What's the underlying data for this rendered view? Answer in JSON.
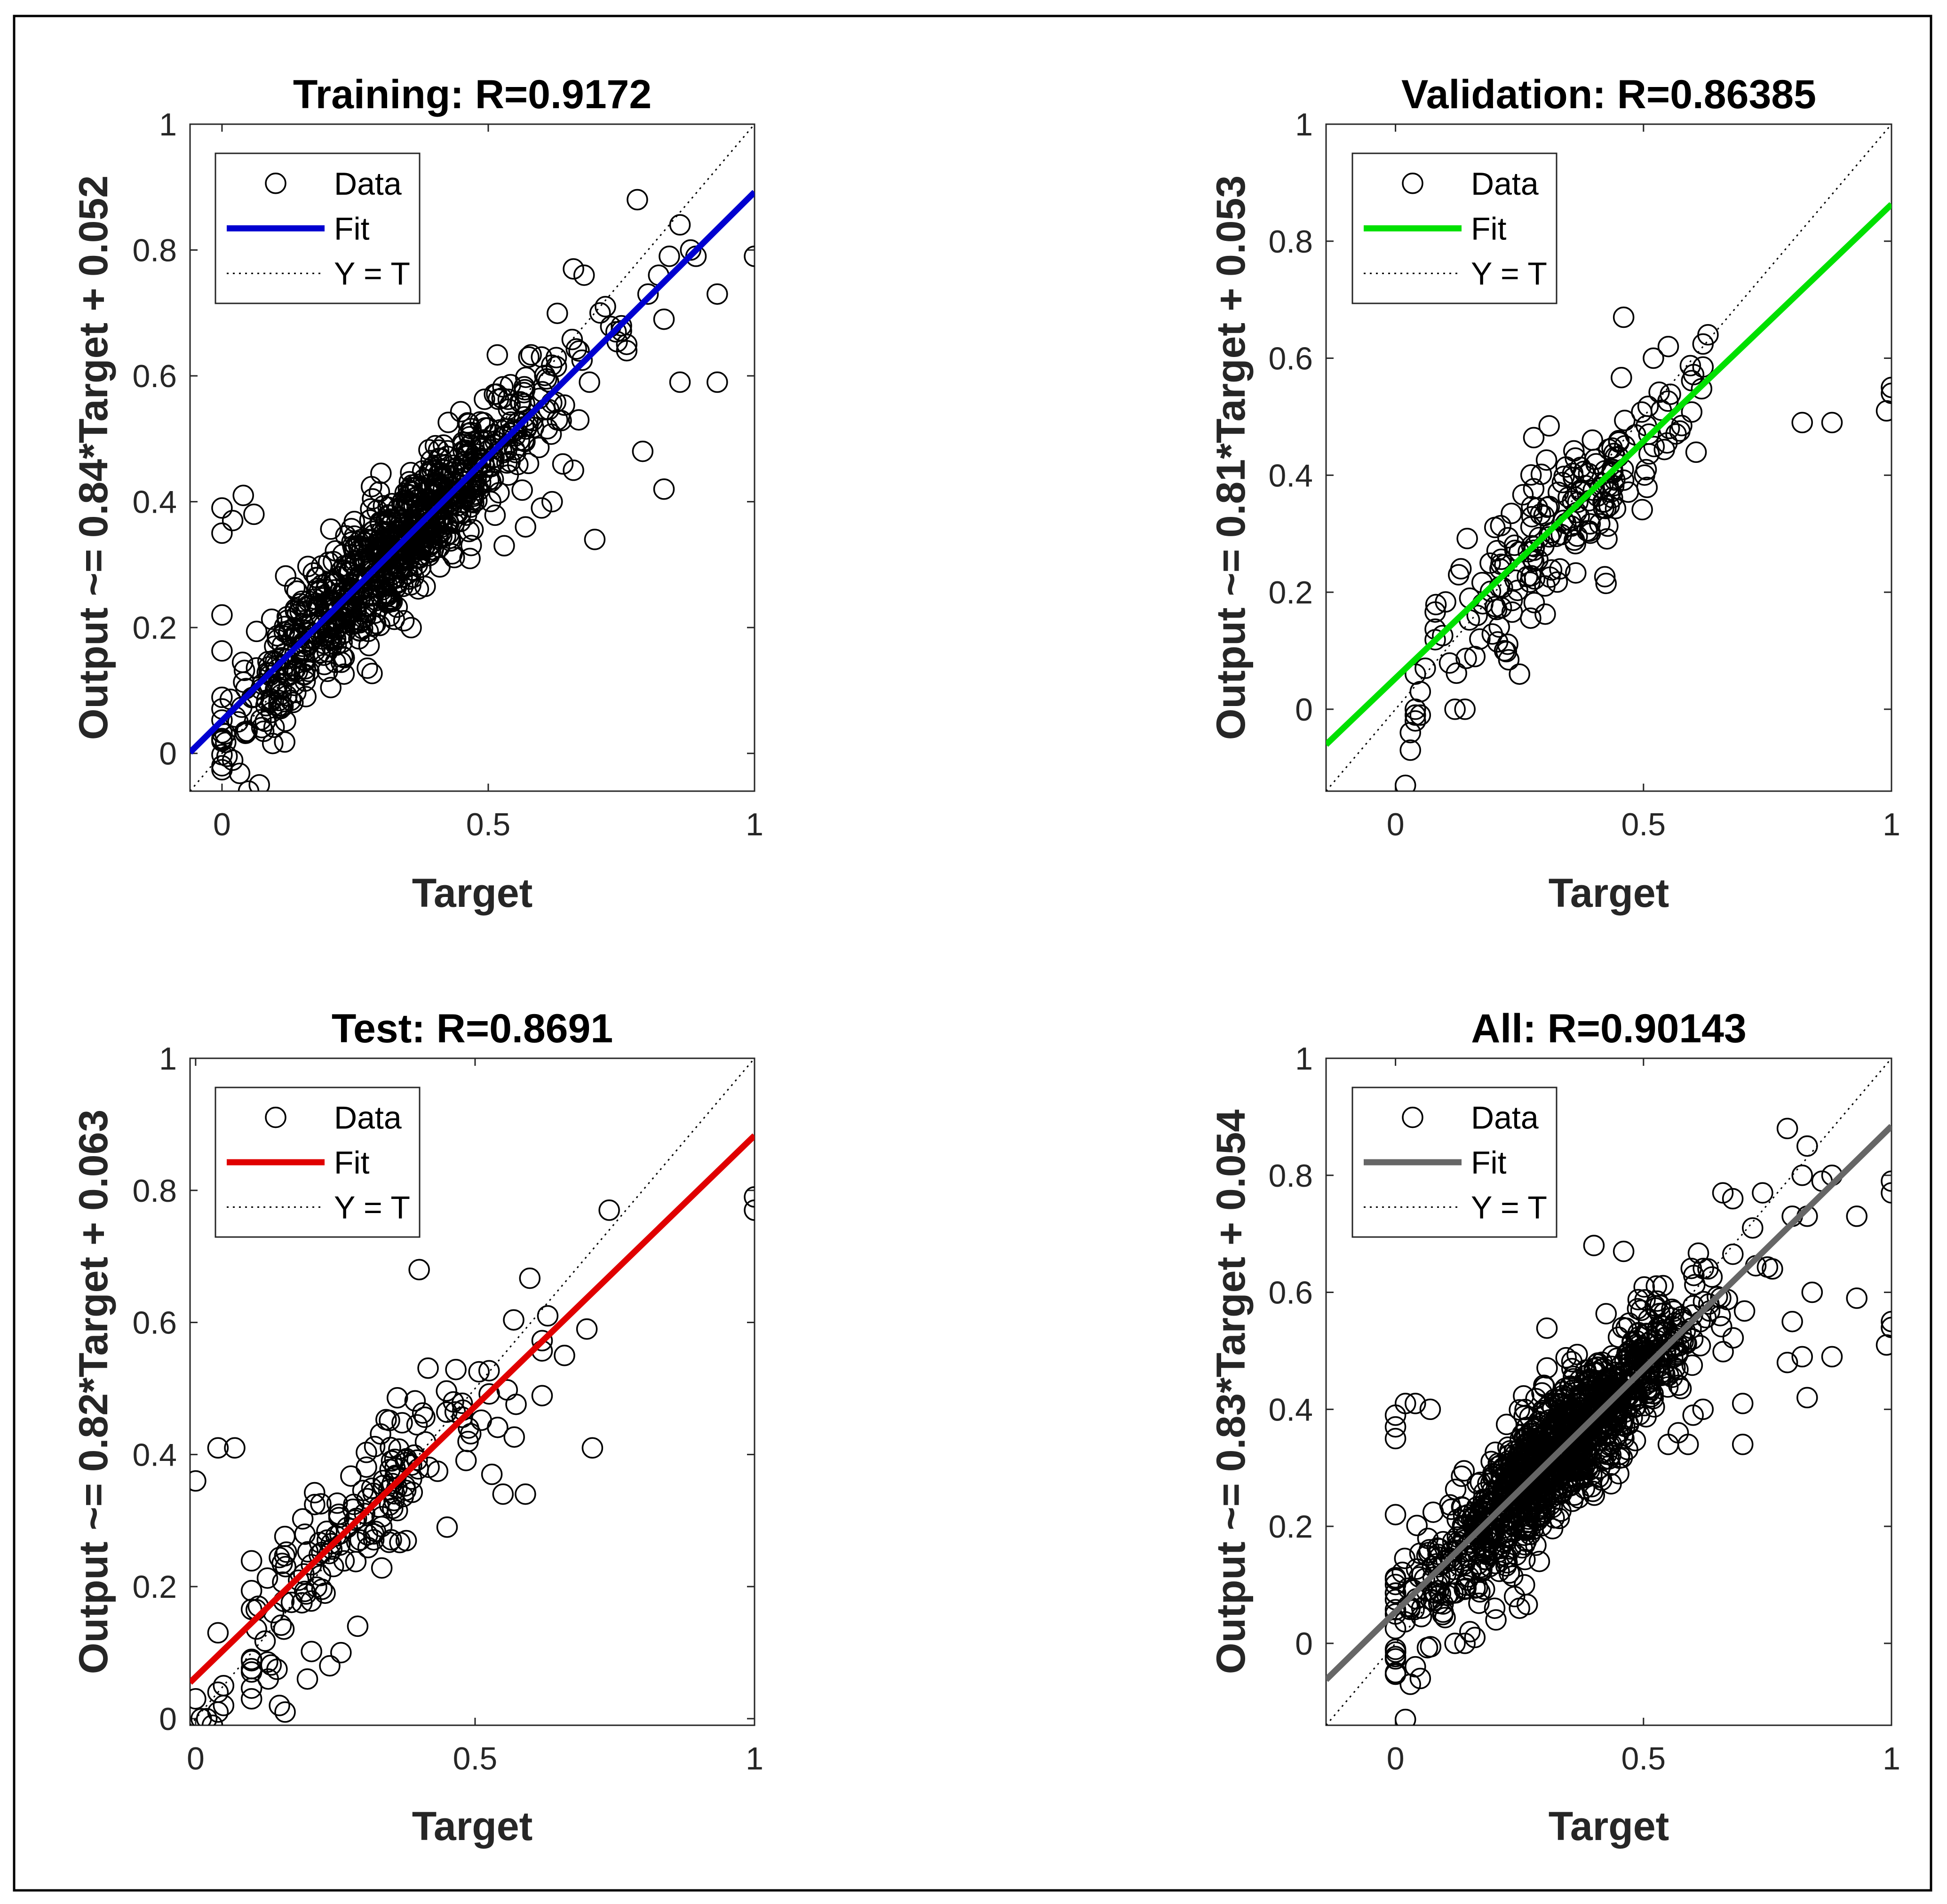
{
  "figure": {
    "chart_data": [
      {
        "id": "training",
        "type": "scatter",
        "title": "Training: R=0.9172",
        "xlabel": "Target",
        "ylabel": "Output ~= 0.84*Target + 0.052",
        "xlim": [
          -0.06,
          1.0
        ],
        "ylim": [
          -0.06,
          1.0
        ],
        "xticks": [
          0,
          0.5,
          1
        ],
        "xtick_labels": [
          "0",
          "0.5",
          "1"
        ],
        "yticks": [
          0,
          0.2,
          0.4,
          0.6,
          0.8,
          1
        ],
        "ytick_labels": [
          "0",
          "0.2",
          "0.4",
          "0.6",
          "0.8",
          "1"
        ],
        "grid": false,
        "legend_position": "top-left",
        "legend": {
          "data": "Data",
          "fit": "Fit",
          "identity": "Y = T"
        },
        "fit": {
          "slope": 0.84,
          "intercept": 0.052,
          "color": "#0000d0"
        },
        "identity_line": true,
        "scatter": {
          "n": 860,
          "seed": 101,
          "xmean": 0.33,
          "xsd": 0.14,
          "xmin": 0.0,
          "xmax": 0.75,
          "noise": 0.05,
          "slope": 0.84,
          "intercept": 0.052,
          "outliers": [
            [
              0.0,
              0.39
            ],
            [
              0.02,
              0.37
            ],
            [
              0.04,
              0.41
            ],
            [
              0.06,
              0.38
            ],
            [
              0.0,
              0.35
            ],
            [
              0.0,
              0.22
            ],
            [
              0.03,
              0.05
            ],
            [
              0.05,
              -0.06
            ],
            [
              0.07,
              -0.05
            ],
            [
              0.78,
              0.88
            ],
            [
              0.86,
              0.84
            ],
            [
              0.88,
              0.8
            ],
            [
              0.89,
              0.79
            ],
            [
              1.0,
              0.79
            ],
            [
              0.84,
              0.79
            ],
            [
              0.82,
              0.76
            ],
            [
              0.8,
              0.73
            ],
            [
              0.93,
              0.73
            ],
            [
              0.83,
              0.69
            ],
            [
              0.76,
              0.64
            ],
            [
              0.86,
              0.59
            ],
            [
              0.93,
              0.59
            ],
            [
              0.69,
              0.59
            ],
            [
              0.67,
              0.53
            ],
            [
              0.79,
              0.48
            ],
            [
              0.83,
              0.42
            ],
            [
              0.7,
              0.34
            ],
            [
              0.66,
              0.77
            ],
            [
              0.68,
              0.76
            ],
            [
              0.72,
              0.71
            ],
            [
              0.71,
              0.7
            ],
            [
              0.74,
              0.67
            ],
            [
              0.76,
              0.65
            ],
            [
              0.6,
              0.63
            ],
            [
              0.63,
              0.53
            ],
            [
              0.64,
              0.46
            ],
            [
              0.66,
              0.45
            ],
            [
              0.62,
              0.4
            ],
            [
              0.6,
              0.39
            ],
            [
              0.57,
              0.36
            ],
            [
              0.53,
              0.33
            ]
          ]
        }
      },
      {
        "id": "validation",
        "type": "scatter",
        "title": "Validation: R=0.86385",
        "xlabel": "Target",
        "ylabel": "Output ~= 0.81*Target + 0.053",
        "xlim": [
          -0.14,
          1.0
        ],
        "ylim": [
          -0.14,
          1.0
        ],
        "xticks": [
          0,
          0.5,
          1
        ],
        "xtick_labels": [
          "0",
          "0.5",
          "1"
        ],
        "yticks": [
          0,
          0.2,
          0.4,
          0.6,
          0.8,
          1
        ],
        "ytick_labels": [
          "0",
          "0.2",
          "0.4",
          "0.6",
          "0.8",
          "1"
        ],
        "grid": false,
        "legend_position": "top-left",
        "legend": {
          "data": "Data",
          "fit": "Fit",
          "identity": "Y = T"
        },
        "fit": {
          "slope": 0.81,
          "intercept": 0.053,
          "color": "#00e000"
        },
        "identity_line": true,
        "scatter": {
          "n": 190,
          "seed": 202,
          "xmean": 0.33,
          "xsd": 0.14,
          "xmin": 0.08,
          "xmax": 0.62,
          "noise": 0.06,
          "slope": 0.81,
          "intercept": 0.053,
          "outliers": [
            [
              0.02,
              -0.13
            ],
            [
              0.03,
              -0.07
            ],
            [
              0.03,
              -0.04
            ],
            [
              0.04,
              -0.02
            ],
            [
              0.04,
              -0.01
            ],
            [
              0.04,
              0.0
            ],
            [
              0.05,
              0.03
            ],
            [
              0.05,
              -0.01
            ],
            [
              0.04,
              0.06
            ],
            [
              0.06,
              0.07
            ],
            [
              0.82,
              0.49
            ],
            [
              0.88,
              0.49
            ],
            [
              0.99,
              0.51
            ],
            [
              1.0,
              0.54
            ],
            [
              1.0,
              0.55
            ],
            [
              0.46,
              0.67
            ],
            [
              0.63,
              0.64
            ],
            [
              0.55,
              0.62
            ],
            [
              0.52,
              0.6
            ],
            [
              0.12,
              0.0
            ],
            [
              0.14,
              0.0
            ],
            [
              0.25,
              0.06
            ],
            [
              0.22,
              0.1
            ],
            [
              0.17,
              0.12
            ],
            [
              0.16,
              0.09
            ]
          ]
        }
      },
      {
        "id": "test",
        "type": "scatter",
        "title": "Test: R=0.8691",
        "xlabel": "Target",
        "ylabel": "Output ~= 0.82*Target + 0.063",
        "xlim": [
          -0.01,
          1.0
        ],
        "ylim": [
          -0.01,
          1.0
        ],
        "xticks": [
          0,
          0.5,
          1
        ],
        "xtick_labels": [
          "0",
          "0.5",
          "1"
        ],
        "yticks": [
          0,
          0.2,
          0.4,
          0.6,
          0.8,
          1
        ],
        "ytick_labels": [
          "0",
          "0.2",
          "0.4",
          "0.6",
          "0.8",
          "1"
        ],
        "grid": false,
        "legend_position": "top-left",
        "legend": {
          "data": "Data",
          "fit": "Fit",
          "identity": "Y = T"
        },
        "fit": {
          "slope": 0.82,
          "intercept": 0.063,
          "color": "#e00000"
        },
        "identity_line": true,
        "scatter": {
          "n": 160,
          "seed": 303,
          "xmean": 0.33,
          "xsd": 0.13,
          "xmin": 0.1,
          "xmax": 0.62,
          "noise": 0.055,
          "slope": 0.82,
          "intercept": 0.063,
          "outliers": [
            [
              0.0,
              0.36
            ],
            [
              0.04,
              0.41
            ],
            [
              0.07,
              0.41
            ],
            [
              0.0,
              0.03
            ],
            [
              0.01,
              0.0
            ],
            [
              0.02,
              0.0
            ],
            [
              0.03,
              -0.01
            ],
            [
              0.04,
              0.01
            ],
            [
              0.05,
              0.02
            ],
            [
              0.04,
              0.04
            ],
            [
              0.05,
              0.05
            ],
            [
              0.04,
              0.13
            ],
            [
              1.0,
              0.79
            ],
            [
              1.0,
              0.77
            ],
            [
              0.74,
              0.77
            ],
            [
              0.4,
              0.68
            ],
            [
              0.63,
              0.61
            ],
            [
              0.7,
              0.59
            ],
            [
              0.66,
              0.55
            ],
            [
              0.71,
              0.41
            ],
            [
              0.45,
              0.29
            ],
            [
              0.55,
              0.34
            ],
            [
              0.59,
              0.34
            ],
            [
              0.53,
              0.37
            ],
            [
              0.29,
              0.14
            ],
            [
              0.26,
              0.1
            ],
            [
              0.24,
              0.08
            ],
            [
              0.2,
              0.06
            ],
            [
              0.15,
              0.02
            ],
            [
              0.16,
              0.01
            ],
            [
              0.1,
              0.03
            ],
            [
              0.13,
              0.06
            ]
          ]
        }
      },
      {
        "id": "all",
        "type": "scatter",
        "title": "All: R=0.90143",
        "xlabel": "Target",
        "ylabel": "Output ~= 0.83*Target + 0.054",
        "xlim": [
          -0.14,
          1.0
        ],
        "ylim": [
          -0.14,
          1.0
        ],
        "xticks": [
          0,
          0.5,
          1
        ],
        "xtick_labels": [
          "0",
          "0.5",
          "1"
        ],
        "yticks": [
          0,
          0.2,
          0.4,
          0.6,
          0.8,
          1
        ],
        "ytick_labels": [
          "0",
          "0.2",
          "0.4",
          "0.6",
          "0.8",
          "1"
        ],
        "grid": false,
        "legend_position": "top-left",
        "legend": {
          "data": "Data",
          "fit": "Fit",
          "identity": "Y = T"
        },
        "fit": {
          "slope": 0.83,
          "intercept": 0.054,
          "color": "#666666"
        },
        "identity_line": true,
        "scatter": {
          "n": 1180,
          "seed": 404,
          "xmean": 0.33,
          "xsd": 0.14,
          "xmin": 0.0,
          "xmax": 0.75,
          "noise": 0.055,
          "slope": 0.83,
          "intercept": 0.054,
          "outliers": [
            [
              0.0,
              0.39
            ],
            [
              0.02,
              0.41
            ],
            [
              0.04,
              0.41
            ],
            [
              0.07,
              0.4
            ],
            [
              0.0,
              0.35
            ],
            [
              0.0,
              0.37
            ],
            [
              0.0,
              0.22
            ],
            [
              0.02,
              -0.13
            ],
            [
              0.03,
              -0.07
            ],
            [
              0.04,
              -0.04
            ],
            [
              0.05,
              -0.06
            ],
            [
              0.79,
              0.88
            ],
            [
              0.83,
              0.85
            ],
            [
              0.82,
              0.8
            ],
            [
              0.86,
              0.79
            ],
            [
              0.88,
              0.8
            ],
            [
              1.0,
              0.79
            ],
            [
              1.0,
              0.77
            ],
            [
              0.74,
              0.77
            ],
            [
              0.66,
              0.77
            ],
            [
              0.68,
              0.76
            ],
            [
              0.72,
              0.71
            ],
            [
              0.8,
              0.73
            ],
            [
              0.83,
              0.73
            ],
            [
              0.93,
              0.73
            ],
            [
              0.76,
              0.64
            ],
            [
              0.84,
              0.6
            ],
            [
              0.93,
              0.59
            ],
            [
              0.8,
              0.55
            ],
            [
              1.0,
              0.55
            ],
            [
              1.0,
              0.54
            ],
            [
              0.99,
              0.51
            ],
            [
              0.82,
              0.49
            ],
            [
              0.88,
              0.49
            ],
            [
              0.79,
              0.48
            ],
            [
              0.83,
              0.42
            ],
            [
              0.7,
              0.41
            ],
            [
              0.7,
              0.34
            ],
            [
              0.46,
              0.67
            ],
            [
              0.4,
              0.68
            ],
            [
              0.63,
              0.64
            ],
            [
              0.6,
              0.39
            ],
            [
              0.62,
              0.4
            ],
            [
              0.57,
              0.36
            ],
            [
              0.55,
              0.34
            ],
            [
              0.59,
              0.34
            ],
            [
              0.45,
              0.29
            ],
            [
              0.12,
              0.0
            ],
            [
              0.14,
              0.0
            ],
            [
              0.25,
              0.06
            ],
            [
              0.29,
              0.14
            ],
            [
              0.26,
              0.1
            ],
            [
              0.24,
              0.08
            ],
            [
              0.2,
              0.06
            ],
            [
              0.15,
              0.02
            ],
            [
              0.16,
              0.01
            ]
          ]
        }
      }
    ]
  }
}
